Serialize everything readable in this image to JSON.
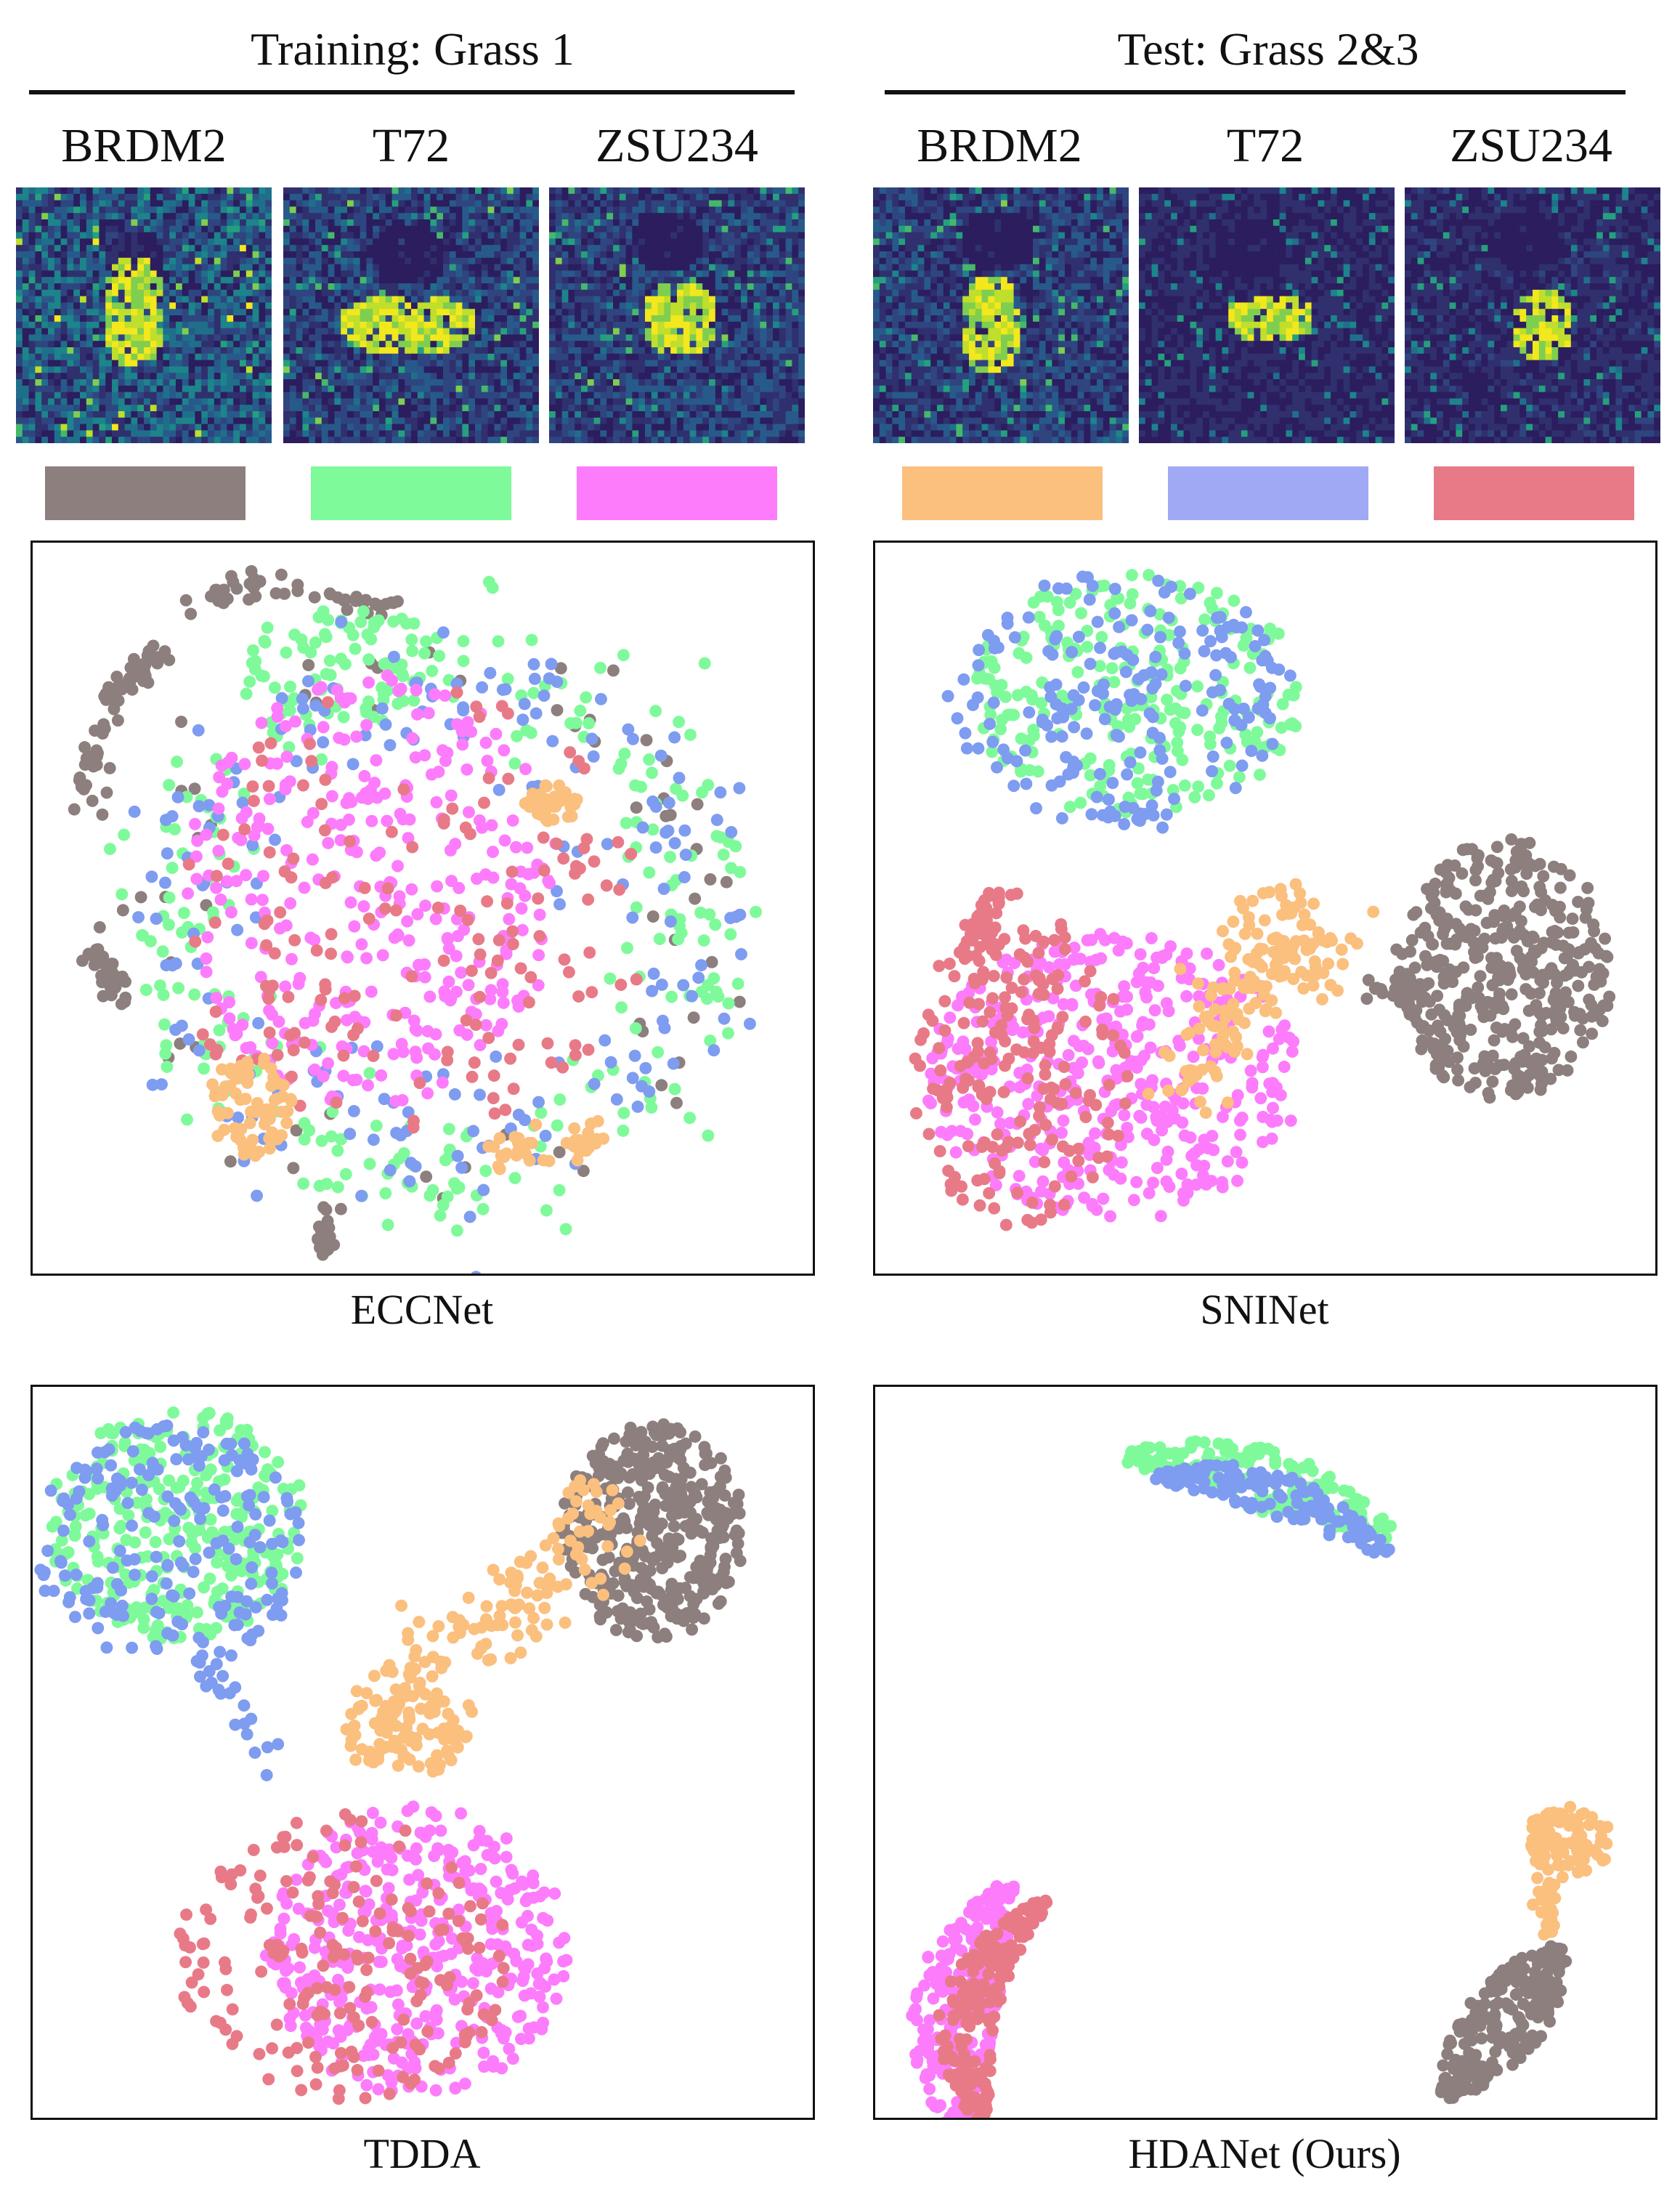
{
  "headers": {
    "training": "Training: Grass 1",
    "test": "Test: Grass 2&3"
  },
  "class_labels": {
    "train": [
      "BRDM2",
      "T72",
      "ZSU234"
    ],
    "test": [
      "BRDM2",
      "T72",
      "ZSU234"
    ]
  },
  "legend": [
    {
      "domain": "train",
      "label": "BRDM2",
      "color": "#8c7f7d"
    },
    {
      "domain": "train",
      "label": "T72",
      "color": "#7ffa9a"
    },
    {
      "domain": "train",
      "label": "ZSU234",
      "color": "#fc7cfc"
    },
    {
      "domain": "test",
      "label": "BRDM2",
      "color": "#fbbf7e"
    },
    {
      "domain": "test",
      "label": "T72",
      "color": "#a0a9f3"
    },
    {
      "domain": "test",
      "label": "ZSU234",
      "color": "#e87a88"
    }
  ],
  "chip_colormap": "viridis",
  "chart_data": [
    {
      "type": "scatter",
      "xlabel": "ECCNet",
      "grid": false,
      "legend": "none",
      "clusters": [
        {
          "class": "train-BRDM2",
          "color": "#8c7f7d",
          "kind": "arcs",
          "notes": "curved strands around periphery"
        },
        {
          "class": "train-T72",
          "color": "#7ffa9a",
          "kind": "ring",
          "cx": 0.5,
          "cy": 0.5
        },
        {
          "class": "train-ZSU234",
          "color": "#fc7cfc",
          "kind": "blob",
          "cx": 0.45,
          "cy": 0.45
        },
        {
          "class": "test-BRDM2",
          "color": "#fbbf7e",
          "kind": "patches"
        },
        {
          "class": "test-T72",
          "color": "#a0a9f3",
          "kind": "ring"
        },
        {
          "class": "test-ZSU234",
          "color": "#e87a88",
          "kind": "mixed"
        }
      ]
    },
    {
      "type": "scatter",
      "xlabel": "SNINet",
      "grid": false,
      "legend": "none",
      "clusters": [
        {
          "class": "train-T72+test-T72",
          "kind": "blob",
          "cx": 0.34,
          "cy": 0.22
        },
        {
          "class": "train-ZSU234+test-ZSU234",
          "kind": "blob",
          "cx": 0.3,
          "cy": 0.73
        },
        {
          "class": "train-BRDM2",
          "kind": "blob",
          "cx": 0.82,
          "cy": 0.57
        },
        {
          "class": "test-BRDM2",
          "kind": "bridge",
          "cx": 0.55,
          "cy": 0.55
        }
      ]
    },
    {
      "type": "scatter",
      "xlabel": "TDDA",
      "grid": false,
      "legend": "none",
      "clusters": [
        {
          "class": "train-T72+test-T72",
          "kind": "blob",
          "cx": 0.2,
          "cy": 0.2
        },
        {
          "class": "train-BRDM2",
          "kind": "blob",
          "cx": 0.83,
          "cy": 0.2
        },
        {
          "class": "test-BRDM2",
          "kind": "bridge",
          "cx": 0.52,
          "cy": 0.38
        },
        {
          "class": "train-ZSU234+test-ZSU234",
          "kind": "blob",
          "cx": 0.5,
          "cy": 0.75
        }
      ]
    },
    {
      "type": "scatter",
      "xlabel": "HDANet (Ours)",
      "grid": false,
      "legend": "none",
      "clusters": [
        {
          "class": "train-T72+test-T72",
          "kind": "crescent",
          "cx": 0.5,
          "cy": 0.1
        },
        {
          "class": "train-ZSU234+test-ZSU234",
          "kind": "crescent",
          "cx": 0.1,
          "cy": 0.82
        },
        {
          "class": "test-BRDM2",
          "kind": "blob",
          "cx": 0.88,
          "cy": 0.62
        },
        {
          "class": "train-BRDM2",
          "kind": "blob",
          "cx": 0.82,
          "cy": 0.82
        }
      ]
    }
  ]
}
